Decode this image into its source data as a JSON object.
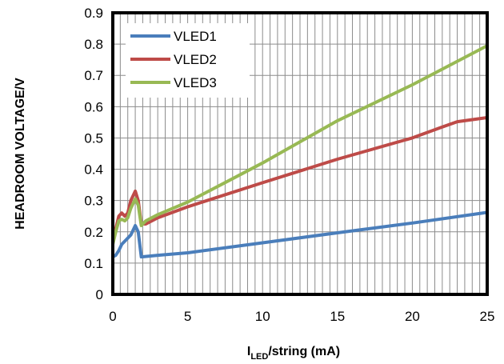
{
  "chart_data": {
    "type": "line",
    "title": "",
    "xlabel": {
      "base": "I",
      "subscript": "LED",
      "suffix": "/string (mA)"
    },
    "ylabel": "HEADROOM  VOLTAGE/V",
    "xlim": [
      0,
      25
    ],
    "ylim": [
      0,
      0.9
    ],
    "xticks": [
      0,
      5,
      10,
      15,
      20,
      25
    ],
    "yticks": [
      0,
      0.1,
      0.2,
      0.3,
      0.4,
      0.5,
      0.6,
      0.7,
      0.8,
      0.9
    ],
    "x_minor_step": 0.5,
    "grid": true,
    "legend_position": "top-left",
    "series": [
      {
        "name": "VLED1",
        "color": "#4a7ebb",
        "points": [
          [
            0,
            0.12
          ],
          [
            0.2,
            0.125
          ],
          [
            0.4,
            0.14
          ],
          [
            0.6,
            0.16
          ],
          [
            0.9,
            0.175
          ],
          [
            1.2,
            0.19
          ],
          [
            1.5,
            0.22
          ],
          [
            1.7,
            0.2
          ],
          [
            1.9,
            0.12
          ],
          [
            3,
            0.125
          ],
          [
            5,
            0.133
          ],
          [
            10,
            0.165
          ],
          [
            15,
            0.197
          ],
          [
            20,
            0.228
          ],
          [
            25,
            0.262
          ]
        ]
      },
      {
        "name": "VLED2",
        "color": "#be4b48",
        "points": [
          [
            0,
            0.18
          ],
          [
            0.2,
            0.21
          ],
          [
            0.4,
            0.25
          ],
          [
            0.6,
            0.26
          ],
          [
            0.8,
            0.25
          ],
          [
            1.0,
            0.26
          ],
          [
            1.2,
            0.3
          ],
          [
            1.5,
            0.33
          ],
          [
            1.7,
            0.3
          ],
          [
            1.9,
            0.225
          ],
          [
            2.2,
            0.225
          ],
          [
            3,
            0.245
          ],
          [
            5,
            0.28
          ],
          [
            10,
            0.357
          ],
          [
            15,
            0.432
          ],
          [
            20,
            0.5
          ],
          [
            22,
            0.535
          ],
          [
            23,
            0.552
          ],
          [
            25,
            0.565
          ]
        ]
      },
      {
        "name": "VLED3",
        "color": "#98b954",
        "points": [
          [
            0,
            0.16
          ],
          [
            0.2,
            0.2
          ],
          [
            0.4,
            0.235
          ],
          [
            0.6,
            0.24
          ],
          [
            0.8,
            0.235
          ],
          [
            1.0,
            0.245
          ],
          [
            1.2,
            0.275
          ],
          [
            1.5,
            0.305
          ],
          [
            1.7,
            0.285
          ],
          [
            1.9,
            0.22
          ],
          [
            2.2,
            0.235
          ],
          [
            3,
            0.255
          ],
          [
            5,
            0.295
          ],
          [
            8,
            0.37
          ],
          [
            10,
            0.42
          ],
          [
            15,
            0.555
          ],
          [
            20,
            0.67
          ],
          [
            25,
            0.795
          ]
        ]
      }
    ]
  }
}
